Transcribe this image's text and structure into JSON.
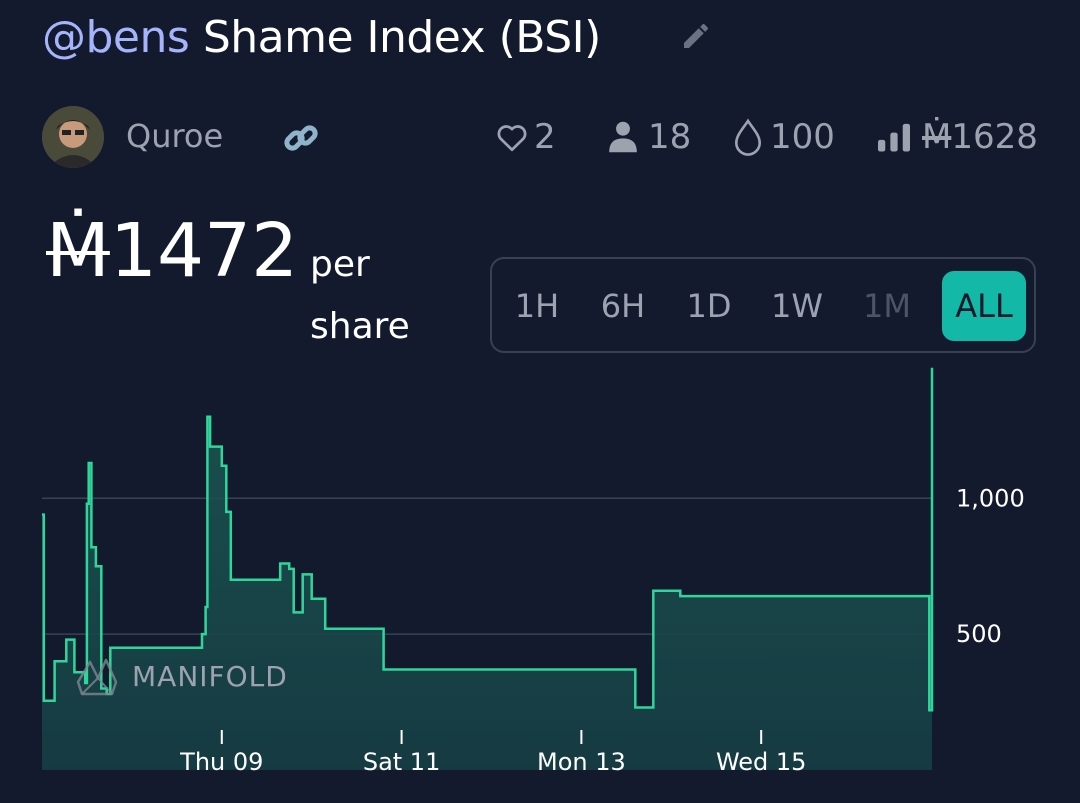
{
  "market": {
    "handle": "@bens",
    "name": "Shame Index (BSI)"
  },
  "creator": {
    "name": "Quroe"
  },
  "stats": {
    "likes": "2",
    "holders": "18",
    "liquidity": "100",
    "volume_symbol": "Ṁ",
    "volume": "1628"
  },
  "price": {
    "symbol": "Ṁ",
    "value": "1472",
    "unit": "per share"
  },
  "time_ranges": [
    {
      "label": "1H",
      "state": "enabled"
    },
    {
      "label": "6H",
      "state": "enabled"
    },
    {
      "label": "1D",
      "state": "enabled"
    },
    {
      "label": "1W",
      "state": "enabled"
    },
    {
      "label": "1M",
      "state": "disabled"
    },
    {
      "label": "ALL",
      "state": "selected"
    }
  ],
  "colors": {
    "background": "#131a2e",
    "line": "#2fd69a",
    "accent": "#14b8a6",
    "handle": "#a5b4fc"
  },
  "chart_data": {
    "type": "area",
    "step": true,
    "watermark": "MANIFOLD",
    "x_ticks": [
      {
        "label": "Thu 09",
        "day": 2
      },
      {
        "label": "Sat 11",
        "day": 4
      },
      {
        "label": "Mon 13",
        "day": 6
      },
      {
        "label": "Wed 15",
        "day": 8
      }
    ],
    "y_ticks": [
      500,
      1000
    ],
    "ylim": [
      0,
      1450
    ],
    "grid": true,
    "series": [
      {
        "points": [
          [
            0.0,
            940
          ],
          [
            0.02,
            255
          ],
          [
            0.12,
            255
          ],
          [
            0.14,
            400
          ],
          [
            0.25,
            400
          ],
          [
            0.27,
            480
          ],
          [
            0.32,
            480
          ],
          [
            0.36,
            360
          ],
          [
            0.4,
            360
          ],
          [
            0.48,
            320
          ],
          [
            0.5,
            980
          ],
          [
            0.52,
            1130
          ],
          [
            0.55,
            820
          ],
          [
            0.6,
            750
          ],
          [
            0.66,
            300
          ],
          [
            0.72,
            280
          ],
          [
            0.76,
            450
          ],
          [
            0.8,
            450
          ],
          [
            0.9,
            450
          ],
          [
            1.3,
            450
          ],
          [
            1.75,
            450
          ],
          [
            1.78,
            500
          ],
          [
            1.82,
            600
          ],
          [
            1.84,
            1300
          ],
          [
            1.87,
            1190
          ],
          [
            1.98,
            1190
          ],
          [
            2.0,
            1120
          ],
          [
            2.05,
            950
          ],
          [
            2.1,
            700
          ],
          [
            2.2,
            700
          ],
          [
            2.5,
            700
          ],
          [
            2.65,
            760
          ],
          [
            2.75,
            740
          ],
          [
            2.8,
            580
          ],
          [
            2.9,
            720
          ],
          [
            3.0,
            630
          ],
          [
            3.15,
            520
          ],
          [
            3.5,
            520
          ],
          [
            3.8,
            370
          ],
          [
            5.0,
            370
          ],
          [
            6.5,
            370
          ],
          [
            6.6,
            230
          ],
          [
            6.8,
            660
          ],
          [
            7.1,
            640
          ],
          [
            8.0,
            640
          ],
          [
            9.0,
            640
          ],
          [
            9.85,
            640
          ],
          [
            9.87,
            220
          ],
          [
            9.9,
            1480
          ]
        ]
      }
    ]
  }
}
